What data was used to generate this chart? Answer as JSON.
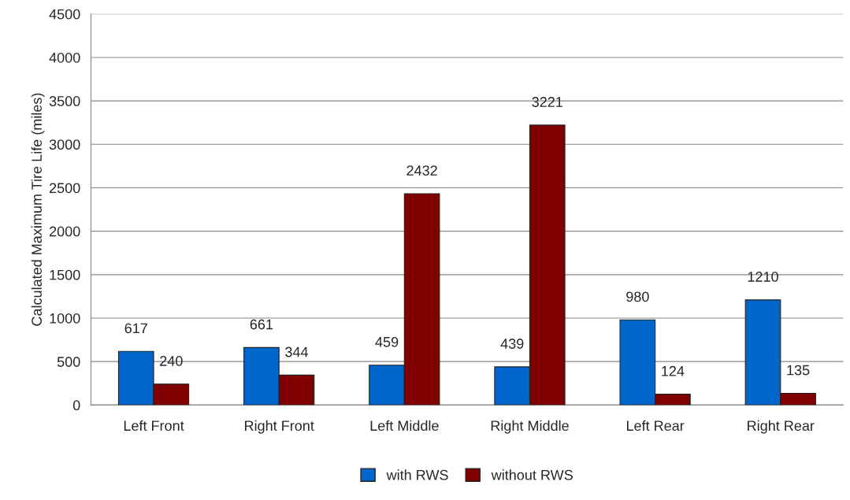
{
  "chart_data": {
    "type": "bar",
    "ylabel": "Calculated Maximum Tire Life (miles)",
    "categories": [
      "Left Front",
      "Right Front",
      "Left Middle",
      "Right Middle",
      "Left Rear",
      "Right Rear"
    ],
    "series": [
      {
        "name": "with RWS",
        "color": "#0066cc",
        "values": [
          617,
          661,
          459,
          439,
          980,
          1210
        ]
      },
      {
        "name": "without RWS",
        "color": "#800000",
        "values": [
          240,
          344,
          2432,
          3221,
          124,
          135
        ]
      }
    ],
    "ylim": [
      0,
      4500
    ],
    "yticks": [
      0,
      500,
      1000,
      1500,
      2000,
      2500,
      3000,
      3500,
      4000,
      4500
    ],
    "grid": "y",
    "legend": "bottom",
    "data_labels": true
  }
}
